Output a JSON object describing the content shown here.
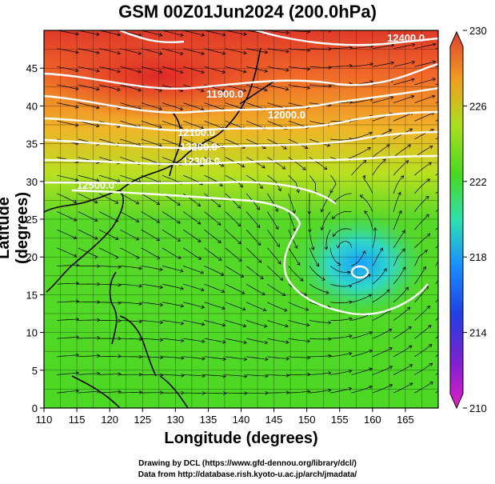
{
  "title": "GSM 00Z01Jun2024 (200.0hPa)",
  "xlabel": "Longitude (degrees)",
  "ylabel": "Latitude  (degrees)",
  "credits": [
    "Drawing by DCL (https://www.gfd-dennou.org/library/dcl/)",
    "Data from http://database.rish.kyoto-u.ac.jp/arch/jmadata/"
  ],
  "chart_data": {
    "type": "heatmap",
    "x_ticks": [
      "110",
      "115",
      "120",
      "125",
      "130",
      "135",
      "140",
      "145",
      "150",
      "155",
      "160",
      "165"
    ],
    "y_ticks": [
      "0",
      "5",
      "10",
      "15",
      "20",
      "25",
      "30",
      "35",
      "40",
      "45"
    ],
    "xlim": [
      110,
      170
    ],
    "ylim": [
      0,
      50
    ],
    "colorbar": {
      "ticks": [
        "210",
        "214",
        "218",
        "222",
        "226",
        "230"
      ],
      "range": [
        210,
        230
      ],
      "colors": [
        "#e020c8",
        "#4020d0",
        "#1890ff",
        "#30e8b0",
        "#58dc20",
        "#a0e020",
        "#f0d020",
        "#f07020",
        "#e04030"
      ]
    },
    "contour_labels": [
      "11900.0",
      "12000.0",
      "12100.0",
      "12200.0",
      "12300.0",
      "12400.0",
      "12500.0"
    ],
    "grid": true
  }
}
